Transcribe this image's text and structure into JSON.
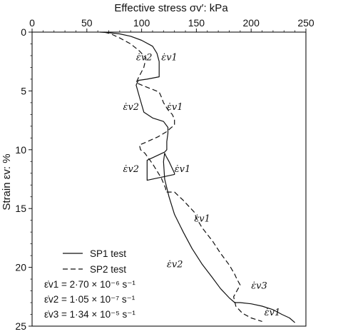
{
  "chart_data": {
    "type": "line",
    "xlabel": "Effective stress σv′: kPa",
    "ylabel": "Strain εv: %",
    "xlim": [
      0,
      250
    ],
    "ylim": [
      0,
      25
    ],
    "x_axis_position": "top",
    "y_inverted": true,
    "xticks": [
      "0",
      "50",
      "100",
      "150",
      "200",
      "250"
    ],
    "yticks": [
      "0",
      "5",
      "10",
      "15",
      "20",
      "25"
    ],
    "series": [
      {
        "name": "SP1 test",
        "style": "solid",
        "x": [
          62,
          70,
          80,
          90,
          100,
          110,
          114,
          116,
          116,
          105,
          97,
          95,
          98,
          102,
          110,
          120,
          124,
          124,
          123,
          123,
          121,
          105,
          105,
          120,
          130,
          130,
          125,
          122,
          121,
          120,
          121,
          125,
          130,
          138,
          146,
          155,
          164,
          172,
          180,
          185,
          190,
          200,
          210,
          220,
          228,
          235,
          240
        ],
        "y": [
          0,
          0.05,
          0.15,
          0.35,
          0.7,
          1.2,
          1.8,
          2.5,
          3.8,
          4.0,
          4.1,
          4.5,
          5.5,
          6.8,
          7.3,
          7.6,
          8.1,
          8.6,
          9.3,
          10.0,
          10.2,
          10.9,
          12.6,
          12.3,
          12.1,
          12.0,
          11.0,
          10.5,
          10.3,
          11.0,
          12.5,
          14.0,
          15.5,
          17.0,
          18.4,
          19.7,
          20.8,
          21.8,
          22.6,
          23.0,
          23.0,
          23.1,
          23.3,
          23.6,
          24.0,
          24.3,
          24.7
        ]
      },
      {
        "name": "SP2 test",
        "style": "dashed",
        "x": [
          66,
          72,
          80,
          90,
          98,
          104,
          102,
          97,
          95,
          100,
          108,
          116,
          118,
          120,
          124,
          128,
          130,
          130,
          126,
          124,
          115,
          103,
          98,
          99,
          103,
          110,
          118,
          122,
          122,
          130,
          138,
          145,
          148,
          150,
          155,
          165,
          172,
          180,
          185,
          187,
          190,
          184,
          186,
          192,
          200,
          210
        ],
        "y": [
          0,
          0.15,
          0.5,
          1.0,
          1.6,
          2.2,
          3.0,
          3.9,
          4.3,
          4.5,
          4.8,
          5.1,
          5.5,
          6.0,
          6.6,
          7.0,
          7.4,
          7.9,
          8.2,
          8.4,
          8.9,
          9.4,
          9.6,
          10.0,
          10.3,
          11.2,
          12.4,
          13.3,
          13.6,
          13.6,
          14.3,
          15.0,
          15.3,
          15.8,
          16.6,
          17.8,
          18.8,
          19.8,
          20.6,
          21.0,
          21.5,
          22.5,
          23.3,
          23.9,
          24.3,
          24.6
        ]
      }
    ],
    "annotations": [
      {
        "text": "ε̇v2",
        "x": 95,
        "y": 2.4
      },
      {
        "text": "ε̇v1",
        "x": 118,
        "y": 2.4
      },
      {
        "text": "ε̇v2",
        "x": 83,
        "y": 6.6
      },
      {
        "text": "ε̇v1",
        "x": 123,
        "y": 6.6
      },
      {
        "text": "ε̇v2",
        "x": 83,
        "y": 11.9
      },
      {
        "text": "ε̇v1",
        "x": 130,
        "y": 11.9
      },
      {
        "text": "ε̇v1",
        "x": 148,
        "y": 16.1
      },
      {
        "text": "ε̇v2",
        "x": 123,
        "y": 20.0
      },
      {
        "text": "ε̇v3",
        "x": 200,
        "y": 21.8
      },
      {
        "text": "ε̇v1",
        "x": 212,
        "y": 24.1
      }
    ],
    "legend": {
      "placement": "bottom-left",
      "entries": [
        {
          "style": "solid",
          "text": "SP1 test"
        },
        {
          "style": "dashed",
          "text": "SP2 test"
        }
      ],
      "rate_lines": [
        "ε̇v1 = 2·70 × 10⁻⁶ s⁻¹",
        "ε̇v2 = 1·05 × 10⁻⁷ s⁻¹",
        "ε̇v3 = 1·34 × 10⁻⁵ s⁻¹"
      ]
    }
  }
}
